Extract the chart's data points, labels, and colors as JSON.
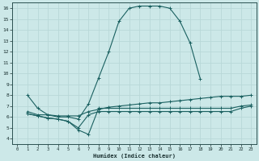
{
  "xlabel": "Humidex (Indice chaleur)",
  "bg_color": "#cce8e8",
  "grid_color": "#aacccc",
  "line_color": "#1a6060",
  "xlim": [
    -0.5,
    23.5
  ],
  "ylim": [
    3.5,
    16.5
  ],
  "xticks": [
    0,
    1,
    2,
    3,
    4,
    5,
    6,
    7,
    8,
    9,
    10,
    11,
    12,
    13,
    14,
    15,
    16,
    17,
    18,
    19,
    20,
    21,
    22,
    23
  ],
  "yticks": [
    4,
    5,
    6,
    7,
    8,
    9,
    10,
    11,
    12,
    13,
    14,
    15,
    16
  ],
  "line1": {
    "x": [
      1,
      2,
      3,
      4,
      5,
      6,
      7,
      8,
      9,
      10,
      11,
      12,
      13,
      14,
      15,
      16,
      17,
      18
    ],
    "y": [
      8.0,
      6.8,
      6.2,
      6.0,
      6.0,
      5.8,
      7.2,
      9.6,
      12.0,
      14.8,
      16.0,
      16.2,
      16.2,
      16.2,
      16.0,
      14.8,
      12.8,
      9.5
    ]
  },
  "line2": {
    "x": [
      1,
      2,
      3,
      4,
      5,
      6,
      7,
      8,
      9,
      10,
      11,
      12,
      13,
      14,
      15,
      16,
      17,
      18,
      19,
      20,
      21,
      22,
      23
    ],
    "y": [
      6.5,
      6.2,
      6.2,
      6.1,
      6.1,
      6.1,
      6.5,
      6.7,
      6.9,
      7.0,
      7.1,
      7.2,
      7.3,
      7.3,
      7.4,
      7.5,
      7.6,
      7.7,
      7.8,
      7.9,
      7.9,
      7.9,
      8.0
    ]
  },
  "line3": {
    "x": [
      1,
      2,
      3,
      4,
      5,
      6,
      7,
      8,
      9,
      10,
      11,
      12,
      13,
      14,
      15,
      16,
      17,
      18,
      19,
      20,
      21,
      22,
      23
    ],
    "y": [
      6.3,
      6.1,
      5.9,
      5.8,
      5.6,
      4.8,
      4.4,
      6.8,
      6.8,
      6.8,
      6.8,
      6.8,
      6.8,
      6.8,
      6.8,
      6.8,
      6.8,
      6.8,
      6.8,
      6.8,
      6.8,
      7.0,
      7.1
    ]
  },
  "line4": {
    "x": [
      1,
      2,
      3,
      4,
      5,
      6,
      7,
      8,
      9,
      10,
      11,
      12,
      13,
      14,
      15,
      16,
      17,
      18,
      19,
      20,
      21,
      22,
      23
    ],
    "y": [
      6.3,
      6.1,
      5.9,
      5.8,
      5.6,
      5.0,
      6.2,
      6.5,
      6.5,
      6.5,
      6.5,
      6.5,
      6.5,
      6.5,
      6.5,
      6.5,
      6.5,
      6.5,
      6.5,
      6.5,
      6.5,
      6.8,
      7.0
    ]
  }
}
